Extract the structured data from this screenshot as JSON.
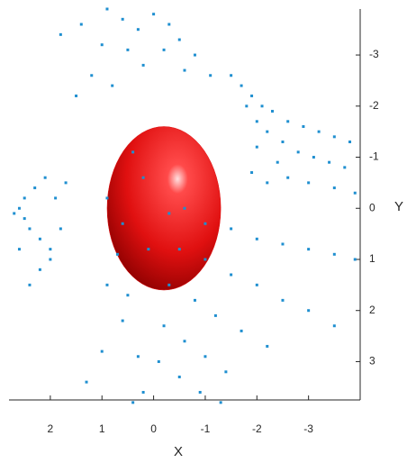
{
  "chart_data": {
    "type": "scatter",
    "xlabel": "X",
    "ylabel": "Y",
    "xlim": [
      2.8,
      -4.0
    ],
    "ylim": [
      -3.9,
      3.75
    ],
    "xticks": [
      2,
      1,
      0,
      -1,
      -2,
      -3
    ],
    "yticks": [
      -3,
      -2,
      -1,
      0,
      1,
      2,
      3
    ],
    "ellipsoid": {
      "color": "#e01010",
      "center": [
        -0.2,
        0
      ],
      "radii": [
        1.1,
        1.6
      ]
    },
    "series": [
      {
        "color": "#1f8fd0",
        "x": [
          2.6,
          2.5,
          2.5,
          2.4,
          2.3,
          2.2,
          2.1,
          2.0,
          1.9,
          1.8,
          2.2,
          2.4,
          2.0,
          1.7,
          2.6,
          2.7,
          0.9,
          0.6,
          0.3,
          0.0,
          -0.3,
          -0.5,
          -0.8,
          0.5,
          0.2,
          -0.2,
          1.0,
          1.2,
          0.8,
          -0.6,
          -1.1,
          1.4,
          1.8,
          1.5,
          -1.5,
          -1.7,
          -1.9,
          -2.1,
          -2.3,
          -2.6,
          -2.9,
          -3.2,
          -3.5,
          -3.8,
          -1.8,
          -2.0,
          -2.2,
          -2.5,
          -2.8,
          -3.1,
          -3.4,
          -3.7,
          -2.0,
          -2.4,
          -1.9,
          -2.2,
          -2.6,
          -3.0,
          -3.5,
          -3.9,
          -1.0,
          -1.5,
          -2.0,
          -2.5,
          -3.0,
          -3.5,
          -3.9,
          -0.5,
          -1.0,
          -1.5,
          -2.0,
          -2.5,
          -3.0,
          -3.5,
          -0.3,
          -0.8,
          -1.2,
          -1.7,
          -2.2,
          -0.2,
          -0.6,
          -1.0,
          -1.4,
          -0.1,
          -0.5,
          -0.9,
          -1.3,
          0.2,
          0.4,
          0.3,
          0.6,
          0.9,
          1.0,
          1.3,
          0.5,
          0.9,
          0.6,
          0.2,
          -0.3,
          0.1,
          -0.6,
          0.4,
          0.7
        ],
        "y": [
          0,
          0.2,
          -0.2,
          0.4,
          -0.4,
          0.6,
          -0.6,
          0.8,
          -0.2,
          0.4,
          1.2,
          1.5,
          1.0,
          -0.5,
          0.8,
          0.1,
          -3.9,
          -3.7,
          -3.5,
          -3.8,
          -3.6,
          -3.3,
          -3.0,
          -3.1,
          -2.8,
          -3.1,
          -3.2,
          -2.6,
          -2.4,
          -2.7,
          -2.6,
          -3.6,
          -3.4,
          -2.2,
          -2.6,
          -2.4,
          -2.2,
          -2.0,
          -1.9,
          -1.7,
          -1.6,
          -1.5,
          -1.4,
          -1.3,
          -2.0,
          -1.7,
          -1.5,
          -1.3,
          -1.1,
          -1.0,
          -0.9,
          -0.8,
          -1.2,
          -0.9,
          -0.7,
          -0.5,
          -0.6,
          -0.5,
          -0.4,
          -0.3,
          0.3,
          0.4,
          0.6,
          0.7,
          0.8,
          0.9,
          1.0,
          0.8,
          1.0,
          1.3,
          1.5,
          1.8,
          2.0,
          2.3,
          1.5,
          1.8,
          2.1,
          2.4,
          2.7,
          2.3,
          2.6,
          2.9,
          3.2,
          3.0,
          3.3,
          3.6,
          3.8,
          3.6,
          3.8,
          2.9,
          2.2,
          1.5,
          2.8,
          3.4,
          1.7,
          -0.2,
          0.3,
          -0.6,
          0.1,
          0.8,
          0.0,
          -1.1,
          0.9
        ]
      }
    ]
  }
}
